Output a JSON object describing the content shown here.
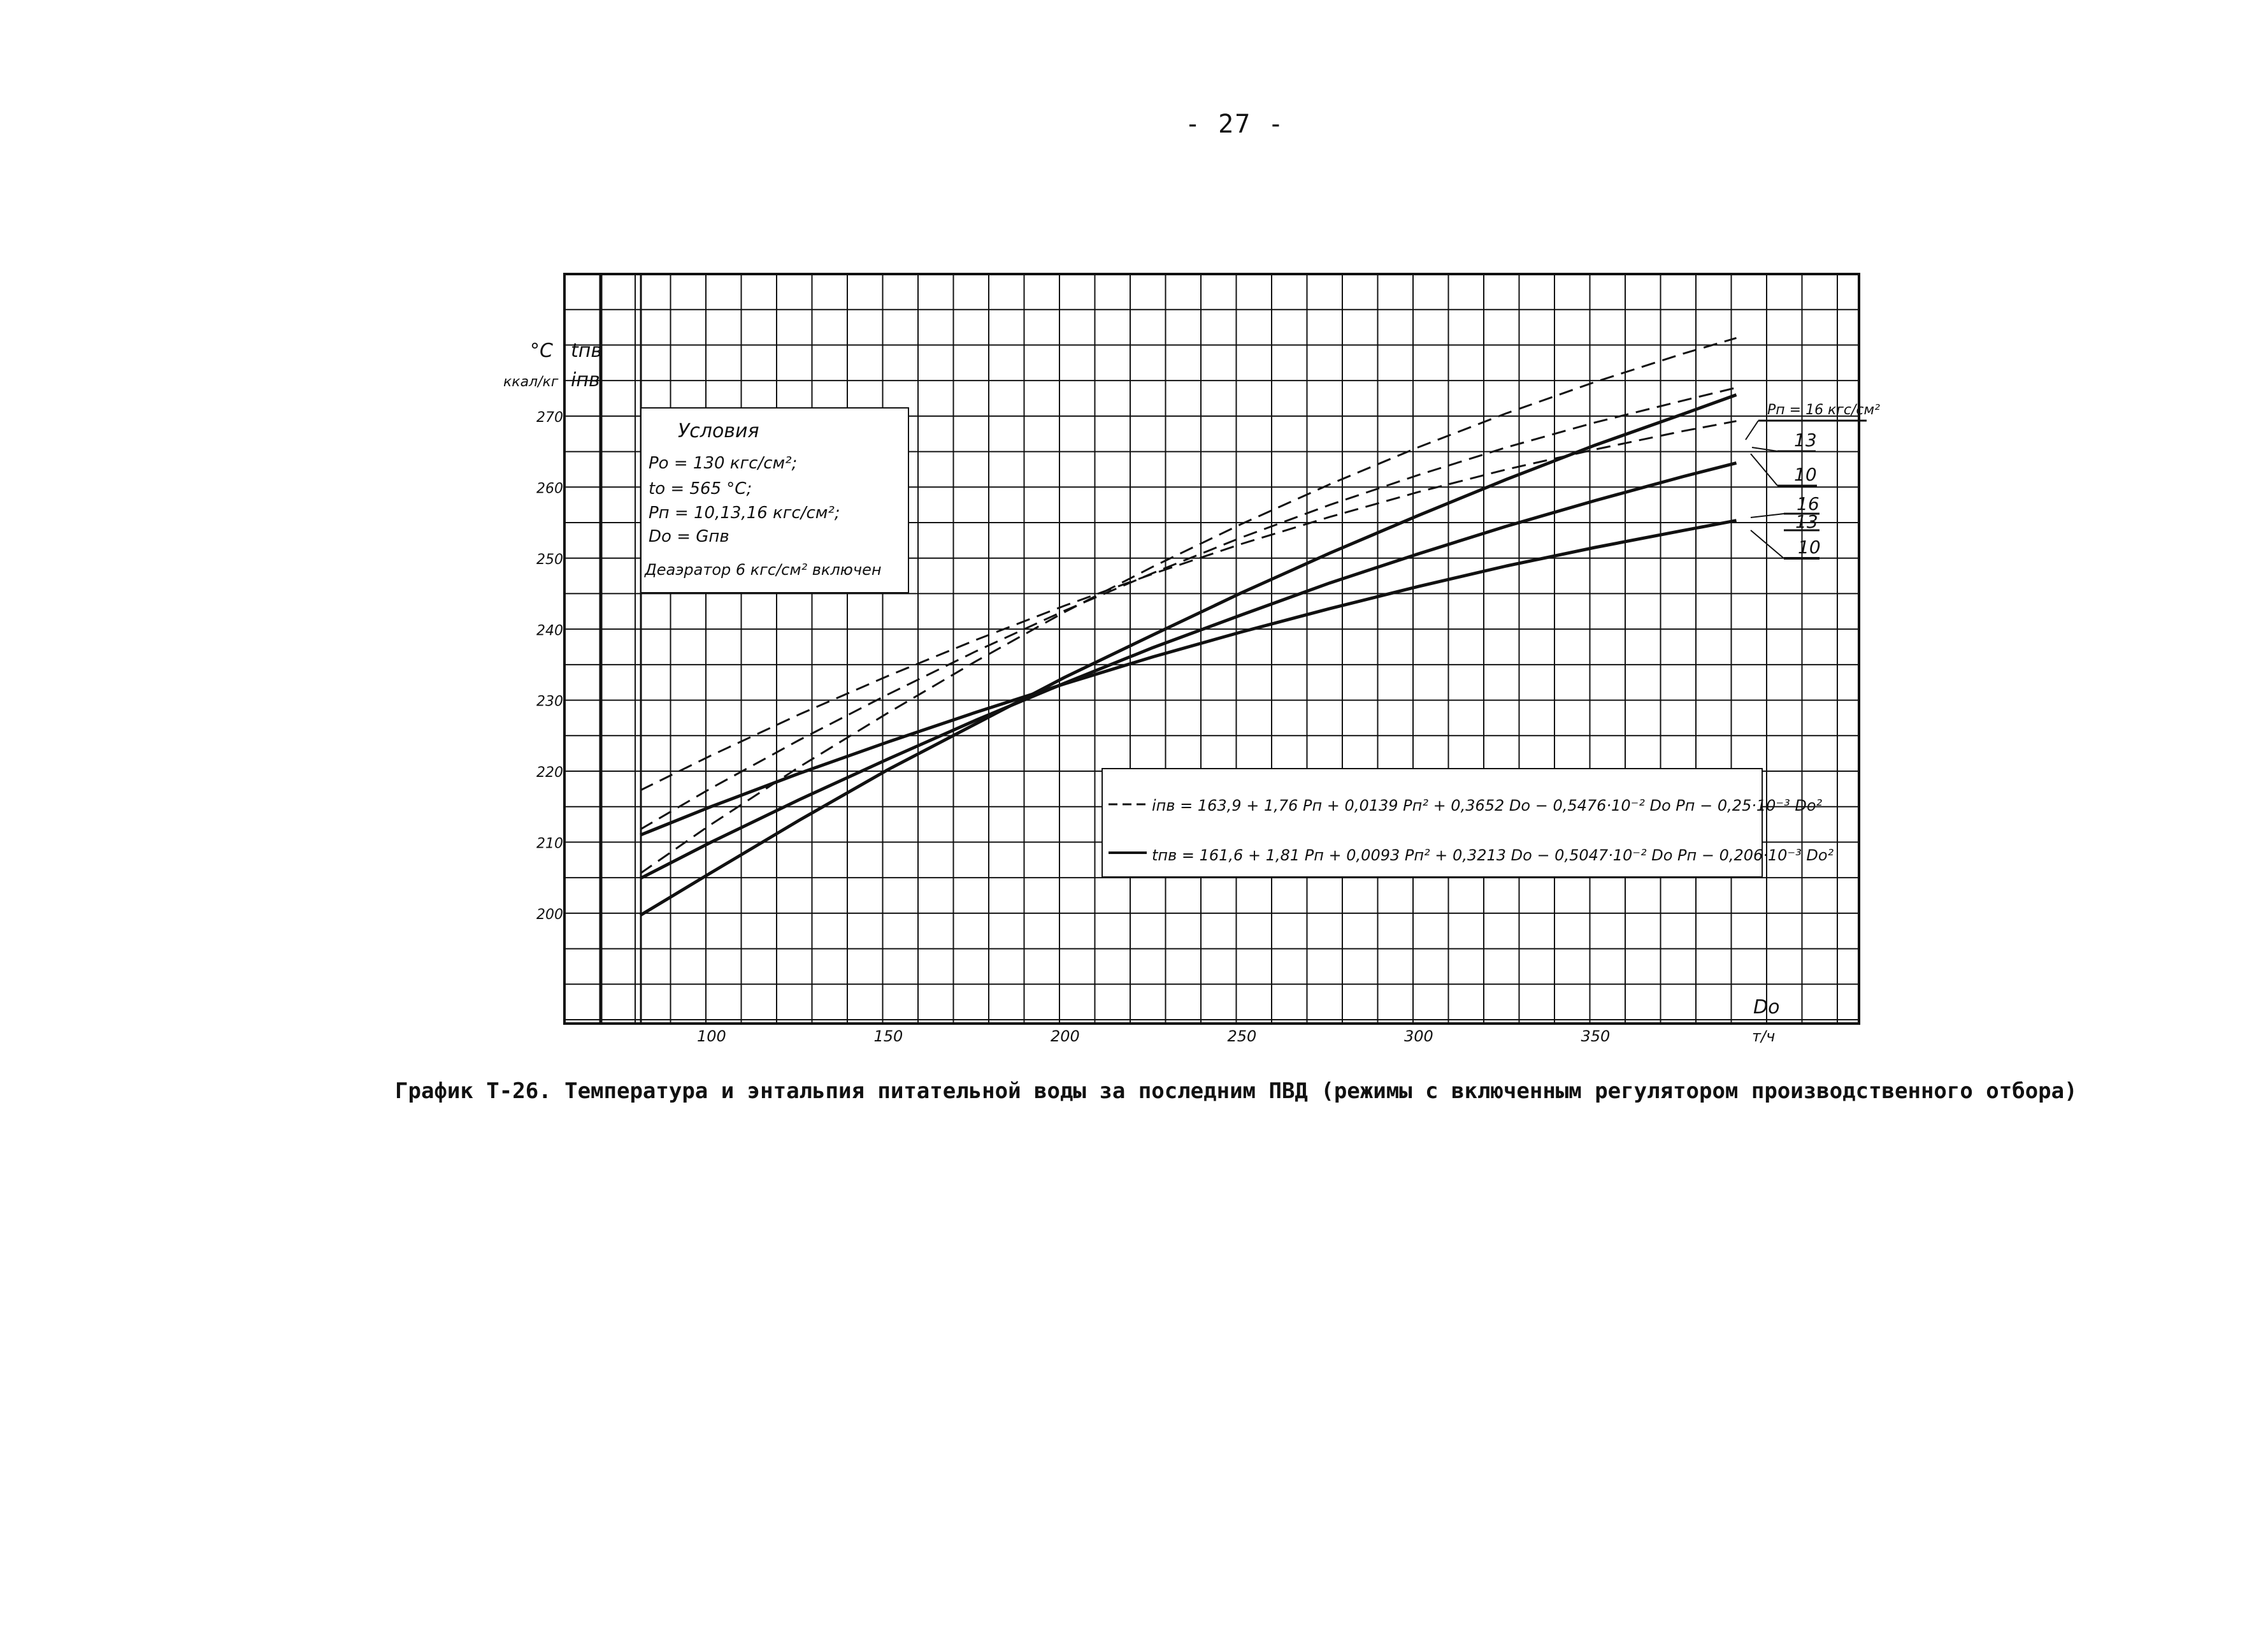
{
  "page": {
    "number": "- 27 -"
  },
  "caption": "График Т-26. Температура и энтальпия питательной воды за последним ПВД (режимы с включенным регулятором производственного отбора)",
  "conditions": {
    "title": "Условия",
    "lines": [
      "Pо = 130 кгс/см²;",
      "tо = 565 °С;",
      "Pп = 10,13,16 кгс/см²;",
      "Dо = Gпв",
      "Деаэратор 6 кгс/см² включен"
    ]
  },
  "axes": {
    "y_unit_c": "°C",
    "y_unit_kcal": "ккал/кг",
    "y_var_t": "tпв",
    "y_var_i": "iпв",
    "x_var": "Dо",
    "x_unit": "т/ч"
  },
  "formulas": {
    "enthalpy": "iпв = 163,9 + 1,76 Pп + 0,0139 Pп² + 0,3652 Dо − 0,5476·10⁻² Dо Pп − 0,25·10⁻³ Dо²",
    "temperature": "tпв = 161,6 + 1,81 Pп + 0,0093 Pп² + 0,3213 Dо − 0,5047·10⁻² Dо Pп − 0,206·10⁻³ Dо²"
  },
  "curve_labels": {
    "pressure_header": "Pп = 16 кгс/см²",
    "dashed": [
      "13",
      "10"
    ],
    "solid": [
      "16",
      "13",
      "10"
    ]
  },
  "chart_data": {
    "type": "line",
    "title": "",
    "xlabel": "Dо, т/ч",
    "ylabel": "tпв °C / iпв ккал/кг",
    "xlim": [
      60,
      410
    ],
    "ylim": [
      185,
      280
    ],
    "x_ticks": [
      100,
      150,
      200,
      250,
      300,
      350
    ],
    "y_ticks": [
      200,
      210,
      220,
      230,
      240,
      250,
      260,
      270
    ],
    "grid": true,
    "series": [
      {
        "name": "iпв, Pп=16",
        "style": "dashed",
        "x": [
          80,
          100,
          125,
          150,
          175,
          200,
          225,
          250,
          275,
          300,
          325,
          350,
          375,
          390
        ],
        "y": [
          217.4,
          222.3,
          228.1,
          233.5,
          238.6,
          243.4,
          247.9,
          252.1,
          255.9,
          259.4,
          262.6,
          265.4,
          268.0,
          269.4
        ]
      },
      {
        "name": "iпв, Pп=13",
        "style": "dashed",
        "x": [
          80,
          100,
          125,
          150,
          175,
          200,
          225,
          250,
          275,
          300,
          325,
          350,
          375,
          390
        ],
        "y": [
          211.9,
          217.7,
          224.5,
          230.9,
          237.0,
          242.7,
          248.0,
          253.0,
          257.6,
          261.8,
          265.7,
          269.2,
          272.3,
          274.1
        ]
      },
      {
        "name": "iпв, Pп=10",
        "style": "dashed",
        "x": [
          80,
          100,
          125,
          150,
          175,
          200,
          225,
          250,
          275,
          300,
          325,
          350,
          375,
          390
        ],
        "y": [
          205.7,
          212.6,
          220.7,
          228.3,
          235.6,
          242.5,
          248.9,
          254.9,
          260.5,
          265.7,
          270.5,
          274.9,
          278.9,
          281.1
        ]
      },
      {
        "name": "tпв, Pп=16",
        "style": "solid",
        "x": [
          80,
          100,
          125,
          150,
          175,
          200,
          225,
          250,
          275,
          300,
          325,
          350,
          375,
          390
        ],
        "y": [
          211.1,
          215.1,
          219.8,
          224.2,
          228.4,
          232.4,
          236.2,
          239.7,
          243.0,
          246.1,
          249.0,
          251.6,
          254.0,
          255.4
        ]
      },
      {
        "name": "tпв, Pп=13",
        "style": "solid",
        "x": [
          80,
          100,
          125,
          150,
          175,
          200,
          225,
          250,
          275,
          300,
          325,
          350,
          375,
          390
        ],
        "y": [
          205.0,
          210.1,
          216.1,
          221.8,
          227.3,
          232.5,
          237.5,
          242.1,
          246.6,
          250.7,
          254.6,
          258.2,
          261.6,
          263.5
        ]
      },
      {
        "name": "tпв, Pп=10",
        "style": "solid",
        "x": [
          80,
          100,
          125,
          150,
          175,
          200,
          225,
          250,
          275,
          300,
          325,
          350,
          375,
          390
        ],
        "y": [
          199.8,
          205.8,
          213.2,
          220.3,
          226.8,
          233.3,
          239.3,
          245.2,
          250.8,
          256.1,
          261.2,
          266.0,
          270.4,
          273.1
        ]
      }
    ]
  }
}
